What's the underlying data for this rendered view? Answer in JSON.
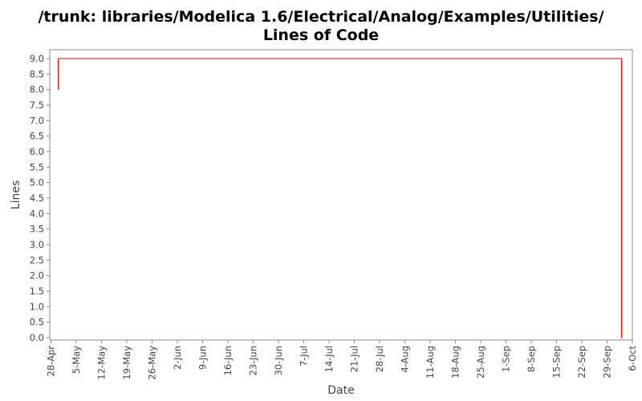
{
  "chart_data": {
    "type": "line",
    "title_line1": "/trunk: libraries/Modelica 1.6/Electrical/Analog/Examples/Utilities/",
    "title_line2": "Lines of Code",
    "xlabel": "Date",
    "ylabel": "Lines",
    "ylim": [
      0,
      9.0
    ],
    "yticks": [
      "0.0",
      "0.5",
      "1.0",
      "1.5",
      "2.0",
      "2.5",
      "3.0",
      "3.5",
      "4.0",
      "4.5",
      "5.0",
      "5.5",
      "6.0",
      "6.5",
      "7.0",
      "7.5",
      "8.0",
      "8.5",
      "9.0"
    ],
    "xticks": [
      "28-Apr",
      "5-May",
      "12-May",
      "19-May",
      "26-May",
      "2-Jun",
      "9-Jun",
      "16-Jun",
      "23-Jun",
      "30-Jun",
      "7-Jul",
      "14-Jul",
      "21-Jul",
      "28-Jul",
      "4-Aug",
      "11-Aug",
      "18-Aug",
      "25-Aug",
      "1-Sep",
      "8-Sep",
      "15-Sep",
      "22-Sep",
      "29-Sep",
      "6-Oct"
    ],
    "grid": false,
    "line_style": "step",
    "series": [
      {
        "color": "#ff0000",
        "points": [
          [
            "30-Apr",
            8
          ],
          [
            "30-Apr",
            9
          ],
          [
            "3-Oct",
            9
          ],
          [
            "3-Oct",
            0
          ]
        ]
      }
    ]
  }
}
